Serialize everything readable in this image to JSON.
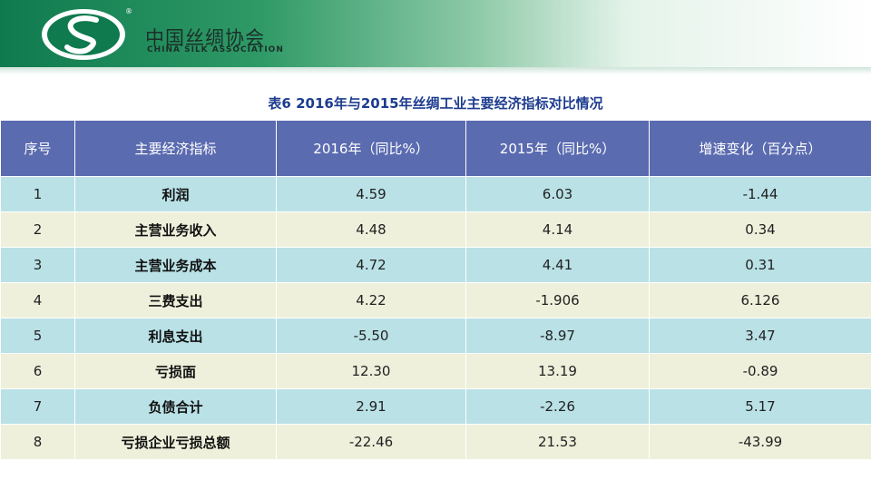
{
  "header": {
    "logo_icon": "silk-association-emblem-icon",
    "registered_mark": "®",
    "org_name_cn": "中国丝绸协会",
    "org_name_en": "CHINA SILK ASSOCIATION",
    "colors": {
      "green": "#0f7a4e",
      "header_fill": "#5b6bb0",
      "row_blue": "#b9e1e6",
      "row_cream": "#eef0db",
      "title": "#1d3c8f"
    }
  },
  "table_title": "表6   2016年与2015年丝绸工业主要经济指标对比情况",
  "table": {
    "columns": [
      "序号",
      "主要经济指标",
      "2016年（同比%）",
      "2015年（同比%）",
      "增速变化（百分点）"
    ],
    "rows": [
      [
        "1",
        "利润",
        "4.59",
        "6.03",
        "-1.44"
      ],
      [
        "2",
        "主营业务收入",
        "4.48",
        "4.14",
        "0.34"
      ],
      [
        "3",
        "主营业务成本",
        "4.72",
        "4.41",
        "0.31"
      ],
      [
        "4",
        "三费支出",
        "4.22",
        "-1.906",
        "6.126"
      ],
      [
        "5",
        "利息支出",
        "-5.50",
        "-8.97",
        "3.47"
      ],
      [
        "6",
        "亏损面",
        "12.30",
        "13.19",
        "-0.89"
      ],
      [
        "7",
        "负债合计",
        "2.91",
        "-2.26",
        "5.17"
      ],
      [
        "8",
        "亏损企业亏损总额",
        "-22.46",
        "21.53",
        "-43.99"
      ]
    ]
  }
}
